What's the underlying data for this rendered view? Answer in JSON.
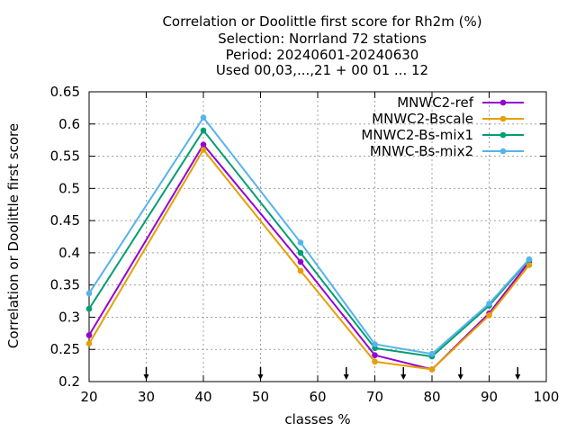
{
  "chart_data": {
    "type": "line",
    "title_lines": [
      "Correlation or Doolittle first score  for Rh2m (%)",
      "Selection: Norrland     72 stations",
      "Period: 20240601-20240630",
      "Used 00,03,...,21 + 00 01 ... 12"
    ],
    "xlabel": "classes %",
    "ylabel": "Correlation or Doolittle first score",
    "xlim": [
      20,
      100
    ],
    "ylim": [
      0.2,
      0.65
    ],
    "xticks": [
      20,
      30,
      40,
      50,
      60,
      70,
      80,
      90,
      100
    ],
    "yticks": [
      0.2,
      0.25,
      0.3,
      0.35,
      0.4,
      0.45,
      0.5,
      0.55,
      0.6,
      0.65
    ],
    "ytick_labels": [
      "0.2",
      "0.25",
      "0.3",
      "0.35",
      "0.4",
      "0.45",
      "0.5",
      "0.55",
      "0.6",
      "0.65"
    ],
    "grid": true,
    "legend_position": "top-right",
    "arrow_markers_x": [
      30,
      50,
      65,
      75,
      85,
      95
    ],
    "x": [
      20,
      40,
      57,
      70,
      80,
      90,
      97
    ],
    "series": [
      {
        "name": "MNWC2-ref",
        "color": "#9400d3",
        "values": [
          0.272,
          0.568,
          0.386,
          0.241,
          0.219,
          0.306,
          0.386
        ]
      },
      {
        "name": "MNWC2-Bscale",
        "color": "#e69f00",
        "values": [
          0.259,
          0.56,
          0.372,
          0.231,
          0.219,
          0.303,
          0.381
        ]
      },
      {
        "name": "MNWC2-Bs-mix1",
        "color": "#009e73",
        "values": [
          0.313,
          0.59,
          0.4,
          0.252,
          0.239,
          0.318,
          0.389
        ]
      },
      {
        "name": "MNWC-Bs-mix2",
        "color": "#56b4e9",
        "values": [
          0.337,
          0.61,
          0.416,
          0.258,
          0.243,
          0.321,
          0.39
        ]
      }
    ]
  }
}
